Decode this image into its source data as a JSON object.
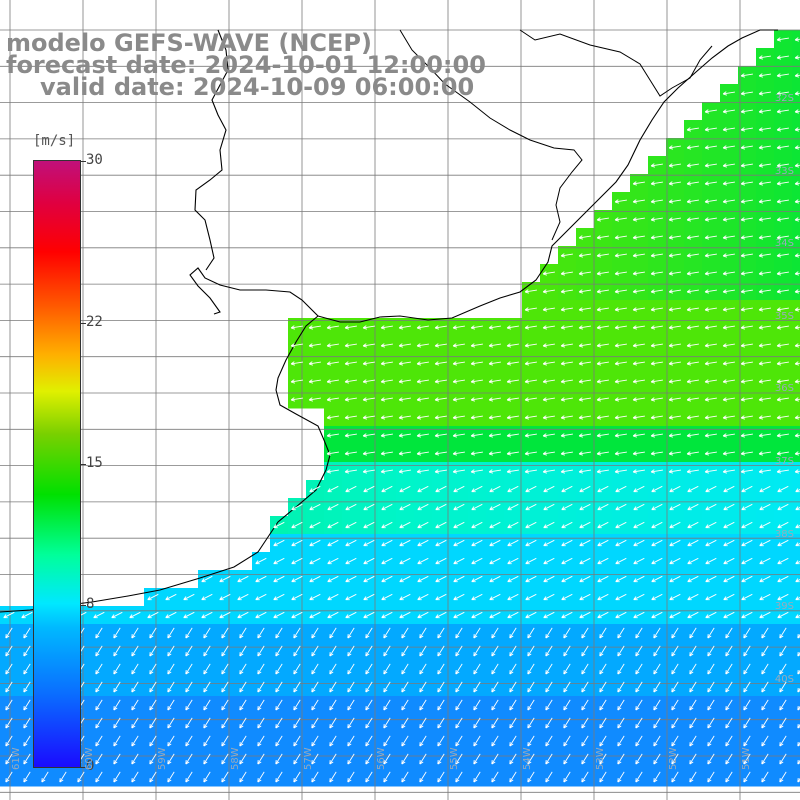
{
  "title": {
    "line1": "modelo GEFS-WAVE (NCEP)",
    "line2": "forecast date: 2024-10-01 12:00:00",
    "line3": "valid date: 2024-10-09 06:00:00"
  },
  "colorbar": {
    "unit": "[m/s]",
    "ticks": [
      {
        "label": "30",
        "value": 30
      },
      {
        "label": "22",
        "value": 22
      },
      {
        "label": "15",
        "value": 15
      },
      {
        "label": "8",
        "value": 8
      },
      {
        "label": "0",
        "value": 0
      }
    ]
  },
  "lat_labels": [
    "32S",
    "33S",
    "34S",
    "35S",
    "36S",
    "37S",
    "38S",
    "39S",
    "40S"
  ],
  "lon_labels": [
    "61W",
    "60W",
    "59W",
    "58W",
    "57W",
    "56W",
    "55W",
    "54W",
    "53W",
    "52W",
    "51W"
  ],
  "colors": {
    "land": "#ffffff",
    "coast": "#000000",
    "grid": "#7a7a7a",
    "arrows": "#ffffff"
  }
}
